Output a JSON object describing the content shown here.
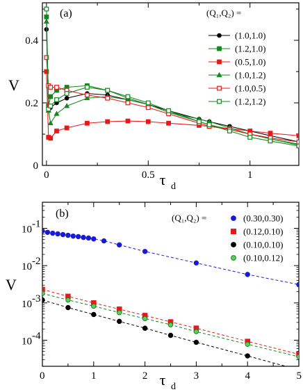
{
  "chart_data": [
    {
      "type": "line",
      "panel_label": "(a)",
      "xlabel": "τ",
      "xlabel_sub": "d",
      "ylabel": "V",
      "xlim": [
        -0.02,
        1.24
      ],
      "ylim": [
        0,
        0.52
      ],
      "xticks": [
        0,
        0.5,
        1
      ],
      "xtick_labels": [
        "0",
        "0.5",
        "1"
      ],
      "yticks": [
        0,
        0.2,
        0.4
      ],
      "ytick_labels": [
        "0",
        "0.2",
        "0.4"
      ],
      "grid": false,
      "legend_title": "(Q₁,Q₂) =",
      "legend_placement": "top-right",
      "series": [
        {
          "name": "(1.0,1.0)",
          "color": "#000000",
          "marker": "circle",
          "filled": true,
          "x": [
            0,
            0.01,
            0.02,
            0.05,
            0.1,
            0.2,
            0.3,
            0.4,
            0.5,
            0.6,
            0.75,
            0.8,
            0.9,
            1.0,
            1.1,
            1.24
          ],
          "y": [
            0.435,
            0.19,
            0.185,
            0.2,
            0.215,
            0.23,
            0.225,
            0.21,
            0.195,
            0.175,
            0.148,
            0.14,
            0.125,
            0.11,
            0.095,
            0.075
          ]
        },
        {
          "name": "(1.2,1.0)",
          "color": "#13861f",
          "marker": "square",
          "filled": true,
          "x": [
            0,
            0.01,
            0.02,
            0.05,
            0.1,
            0.2,
            0.3,
            0.4,
            0.5,
            0.6,
            0.75,
            0.8,
            0.9,
            1.0,
            1.1,
            1.24
          ],
          "y": [
            0.475,
            0.19,
            0.22,
            0.24,
            0.25,
            0.255,
            0.24,
            0.215,
            0.195,
            0.17,
            0.14,
            0.13,
            0.115,
            0.1,
            0.085,
            0.068
          ]
        },
        {
          "name": "(0.5,1.0)",
          "color": "#e8191b",
          "marker": "square",
          "filled": true,
          "x": [
            0,
            0.01,
            0.02,
            0.05,
            0.1,
            0.2,
            0.3,
            0.4,
            0.5,
            0.6,
            0.75,
            0.8,
            0.9,
            1.0,
            1.1,
            1.24
          ],
          "y": [
            0.3,
            0.09,
            0.087,
            0.11,
            0.12,
            0.135,
            0.14,
            0.142,
            0.14,
            0.135,
            0.128,
            0.125,
            0.118,
            0.11,
            0.103,
            0.095
          ]
        },
        {
          "name": "(1.0,1.2)",
          "color": "#13861f",
          "marker": "triangle",
          "filled": true,
          "x": [
            0,
            0.01,
            0.02,
            0.05,
            0.1,
            0.2,
            0.3,
            0.4,
            0.5,
            0.6,
            0.75,
            0.8,
            0.9,
            1.0,
            1.1,
            1.24
          ],
          "y": [
            0.46,
            0.175,
            0.135,
            0.165,
            0.19,
            0.215,
            0.22,
            0.21,
            0.195,
            0.17,
            0.148,
            0.14,
            0.12,
            0.1,
            0.085,
            0.065
          ]
        },
        {
          "name": "(1.0,0.5)",
          "color": "#e8191b",
          "marker": "square",
          "filled": false,
          "x": [
            0,
            0.01,
            0.02,
            0.05,
            0.1,
            0.2,
            0.3,
            0.4,
            0.5,
            0.6,
            0.75,
            0.8,
            0.9,
            1.0,
            1.1,
            1.24
          ],
          "y": [
            0.345,
            0.255,
            0.25,
            0.25,
            0.24,
            0.225,
            0.215,
            0.2,
            0.185,
            0.165,
            0.135,
            0.125,
            0.115,
            0.1,
            0.088,
            0.075
          ]
        },
        {
          "name": "(1.2,1.2)",
          "color": "#13861f",
          "marker": "square",
          "filled": false,
          "x": [
            0,
            0.01,
            0.02,
            0.05,
            0.1,
            0.2,
            0.3,
            0.4,
            0.5,
            0.6,
            0.75,
            0.8,
            0.9,
            1.0,
            1.1,
            1.24
          ],
          "y": [
            0.5,
            0.18,
            0.19,
            0.21,
            0.23,
            0.25,
            0.24,
            0.22,
            0.2,
            0.175,
            0.14,
            0.13,
            0.11,
            0.09,
            0.078,
            0.062
          ]
        }
      ]
    },
    {
      "type": "scatter",
      "panel_label": "(b)",
      "xlabel": "τ",
      "xlabel_sub": "d",
      "ylabel": "V",
      "yscale": "log",
      "xlim": [
        0,
        5
      ],
      "ylim": [
        2e-05,
        0.5
      ],
      "xticks": [
        0,
        1,
        2,
        3,
        4,
        5
      ],
      "xtick_labels": [
        "0",
        "1",
        "2",
        "3",
        "4",
        "5"
      ],
      "yticks": [
        0.0001,
        0.001,
        0.01,
        0.1
      ],
      "ytick_bases": [
        "10",
        "10",
        "10",
        "10"
      ],
      "ytick_exps": [
        "-4",
        "-3",
        "-2",
        "-1"
      ],
      "grid": false,
      "legend_title": "(Q₁,Q₂) =",
      "legend_placement": "top-right",
      "series": [
        {
          "name": "(0.30,0.30)",
          "color": "#1a1ad6",
          "marker": "circle",
          "filled": true,
          "edge": "#1a1ad6",
          "x": [
            0,
            0.1,
            0.2,
            0.3,
            0.4,
            0.5,
            0.6,
            0.7,
            0.8,
            0.9,
            1.0,
            1.2,
            1.5,
            2.0,
            3.0,
            4.0,
            5.0
          ],
          "y": [
            0.085,
            0.078,
            0.074,
            0.071,
            0.068,
            0.065,
            0.062,
            0.06,
            0.057,
            0.055,
            0.052,
            0.046,
            0.036,
            0.024,
            0.0118,
            0.0058,
            0.0031
          ]
        },
        {
          "name": "(0.12,0.10)",
          "color": "#e8191b",
          "marker": "square",
          "filled": true,
          "edge": "#e8191b",
          "x": [
            0,
            0.5,
            1.0,
            1.5,
            2.0,
            2.5,
            3.0,
            4.0,
            5.0
          ],
          "y": [
            0.0023,
            0.0015,
            0.001,
            0.00068,
            0.00046,
            0.00031,
            0.00021,
            9.3e-05,
            4.2e-05
          ]
        },
        {
          "name": "(0.10,0.10)",
          "color": "#000000",
          "marker": "circle",
          "filled": true,
          "edge": "#000000",
          "x": [
            0,
            0.5,
            1.0,
            1.5,
            2.0,
            2.5,
            3.0,
            4.0,
            5.0
          ],
          "y": [
            0.0012,
            0.00075,
            0.00049,
            0.00032,
            0.00021,
            0.000135,
            8.8e-05,
            3.8e-05,
            1.6e-05
          ]
        },
        {
          "name": "(0.10,0.12)",
          "color": "#5cd05c",
          "marker": "circle",
          "filled": true,
          "edge": "#13861f",
          "x": [
            0,
            0.5,
            1.0,
            1.5,
            2.0,
            2.5,
            3.0,
            4.0,
            5.0
          ],
          "y": [
            0.0018,
            0.0012,
            0.00082,
            0.00055,
            0.00038,
            0.00026,
            0.00017,
            7.8e-05,
            3.6e-05
          ]
        }
      ]
    }
  ]
}
